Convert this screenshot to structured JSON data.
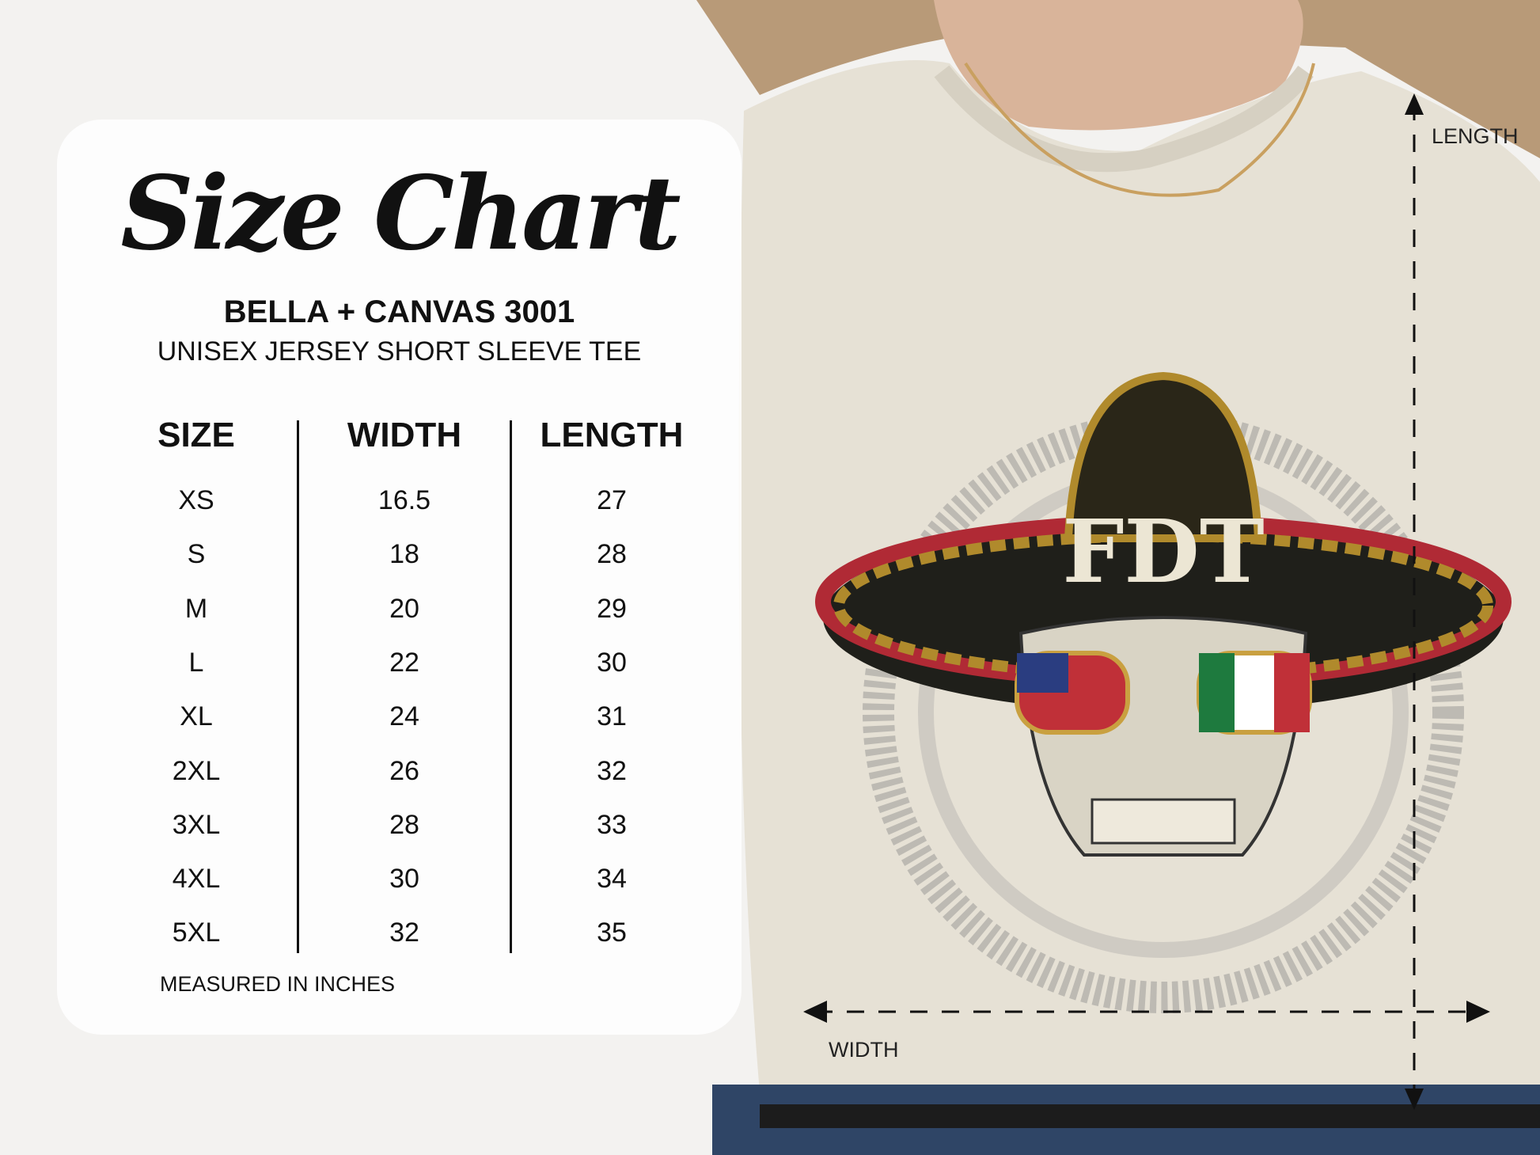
{
  "title": "Size Chart",
  "brand": "BELLA + CANVAS 3001",
  "product": "UNISEX JERSEY SHORT SLEEVE TEE",
  "table": {
    "headers": [
      "SIZE",
      "WIDTH",
      "LENGTH"
    ],
    "rows": [
      [
        "XS",
        "16.5",
        "27"
      ],
      [
        "S",
        "18",
        "28"
      ],
      [
        "M",
        "20",
        "29"
      ],
      [
        "L",
        "22",
        "30"
      ],
      [
        "XL",
        "24",
        "31"
      ],
      [
        "2XL",
        "26",
        "32"
      ],
      [
        "3XL",
        "28",
        "33"
      ],
      [
        "4XL",
        "30",
        "34"
      ],
      [
        "5XL",
        "32",
        "35"
      ]
    ]
  },
  "footnote": "MEASURED IN INCHES",
  "dimensions": {
    "length_label": "LENGTH",
    "width_label": "WIDTH"
  },
  "graphic_text": "FDT",
  "colors": {
    "shirt": "#e6e1d5",
    "hair": "#b89a78",
    "denim": "#2f4566",
    "text": "#111111"
  }
}
